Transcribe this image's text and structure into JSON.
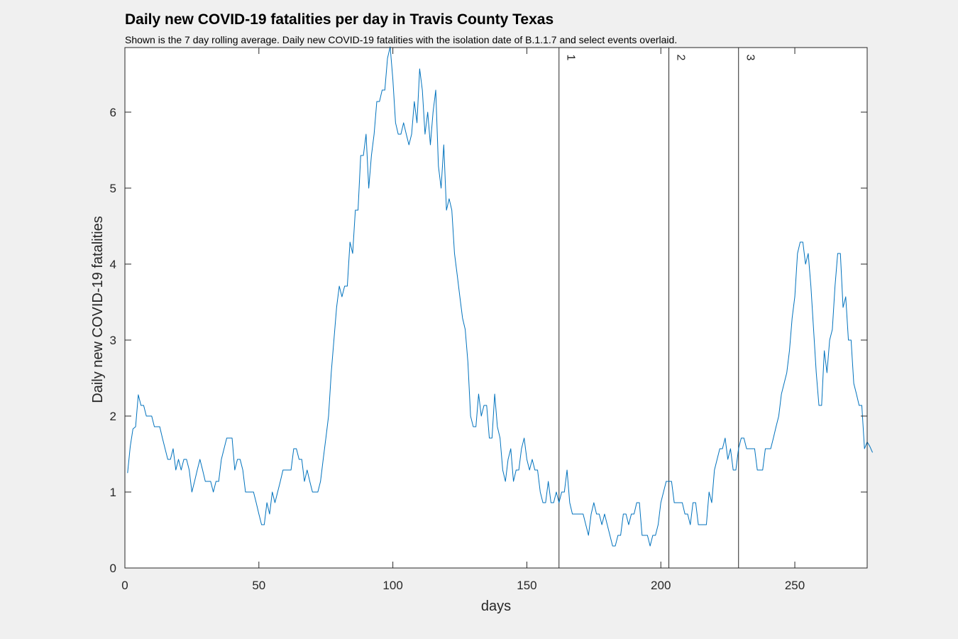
{
  "chart_data": {
    "type": "line",
    "title": "Daily new COVID-19 fatalities per day in Travis County Texas",
    "subtitle": "Shown is the 7 day rolling average. Daily new COVID-19 fatalities with the isolation date of B.1.1.7 and select events overlaid.",
    "xlabel": "days",
    "ylabel": "Daily new COVID-19 fatalities",
    "xlim": [
      0,
      277
    ],
    "ylim": [
      0,
      6.85
    ],
    "x_ticks": [
      0,
      50,
      100,
      150,
      200,
      250
    ],
    "y_ticks": [
      0,
      1,
      2,
      3,
      4,
      5,
      6
    ],
    "grid": false,
    "line_color": "#0072bd",
    "event_lines": [
      {
        "label": "1",
        "x": 162
      },
      {
        "label": "2",
        "x": 203
      },
      {
        "label": "3",
        "x": 229
      }
    ],
    "series": [
      {
        "x_start": 1,
        "values": [
          1.25,
          1.6,
          1.83,
          1.86,
          2.28,
          2.14,
          2.14,
          2.0,
          2.0,
          2.0,
          1.86,
          1.86,
          1.86,
          1.71,
          1.57,
          1.43,
          1.43,
          1.57,
          1.29,
          1.43,
          1.29,
          1.43,
          1.43,
          1.29,
          1.0,
          1.14,
          1.29,
          1.43,
          1.29,
          1.14,
          1.14,
          1.14,
          1.0,
          1.14,
          1.14,
          1.43,
          1.57,
          1.71,
          1.71,
          1.71,
          1.29,
          1.43,
          1.43,
          1.29,
          1.0,
          1.0,
          1.0,
          1.0,
          0.86,
          0.71,
          0.57,
          0.57,
          0.86,
          0.71,
          1.0,
          0.86,
          1.0,
          1.14,
          1.29,
          1.29,
          1.29,
          1.29,
          1.57,
          1.57,
          1.43,
          1.43,
          1.14,
          1.29,
          1.14,
          1.0,
          1.0,
          1.0,
          1.14,
          1.43,
          1.71,
          2.0,
          2.57,
          3.0,
          3.43,
          3.71,
          3.57,
          3.71,
          3.71,
          4.29,
          4.14,
          4.71,
          4.71,
          5.43,
          5.43,
          5.71,
          5.0,
          5.43,
          5.71,
          6.14,
          6.14,
          6.29,
          6.29,
          6.71,
          6.86,
          6.43,
          5.86,
          5.71,
          5.71,
          5.86,
          5.71,
          5.57,
          5.71,
          6.14,
          5.86,
          6.57,
          6.29,
          5.71,
          6.0,
          5.57,
          6.0,
          6.29,
          5.29,
          5.0,
          5.57,
          4.71,
          4.86,
          4.71,
          4.14,
          3.86,
          3.57,
          3.29,
          3.14,
          2.71,
          2.0,
          1.86,
          1.86,
          2.29,
          2.0,
          2.14,
          2.14,
          1.71,
          1.71,
          2.29,
          1.86,
          1.71,
          1.29,
          1.14,
          1.43,
          1.57,
          1.14,
          1.29,
          1.29,
          1.57,
          1.71,
          1.43,
          1.29,
          1.43,
          1.29,
          1.29,
          1.0,
          0.86,
          0.86,
          1.14,
          0.86,
          0.86,
          1.0,
          0.86,
          1.0,
          1.0,
          1.29,
          0.86,
          0.71,
          0.71,
          0.71,
          0.71,
          0.71,
          0.57,
          0.43,
          0.71,
          0.86,
          0.71,
          0.71,
          0.57,
          0.71,
          0.57,
          0.43,
          0.29,
          0.29,
          0.43,
          0.43,
          0.71,
          0.71,
          0.57,
          0.71,
          0.71,
          0.86,
          0.86,
          0.43,
          0.43,
          0.43,
          0.29,
          0.43,
          0.43,
          0.57,
          0.86,
          1.0,
          1.14,
          1.14,
          1.14,
          0.86,
          0.86,
          0.86,
          0.86,
          0.71,
          0.71,
          0.57,
          0.86,
          0.86,
          0.57,
          0.57,
          0.57,
          0.57,
          1.0,
          0.86,
          1.29,
          1.43,
          1.57,
          1.57,
          1.71,
          1.43,
          1.57,
          1.29,
          1.29,
          1.57,
          1.71,
          1.71,
          1.57,
          1.57,
          1.57,
          1.57,
          1.29,
          1.29,
          1.29,
          1.57,
          1.57,
          1.57,
          1.71,
          1.86,
          2.0,
          2.29,
          2.43,
          2.57,
          2.86,
          3.29,
          3.57,
          4.14,
          4.29,
          4.29,
          4.0,
          4.14,
          3.71,
          3.14,
          2.57,
          2.14,
          2.14,
          2.86,
          2.57,
          3.0,
          3.14,
          3.71,
          4.14,
          4.14,
          3.43,
          3.57,
          3.0,
          3.0,
          2.43,
          2.29,
          2.14,
          2.14,
          1.57,
          1.66,
          1.6,
          1.52
        ]
      }
    ]
  }
}
